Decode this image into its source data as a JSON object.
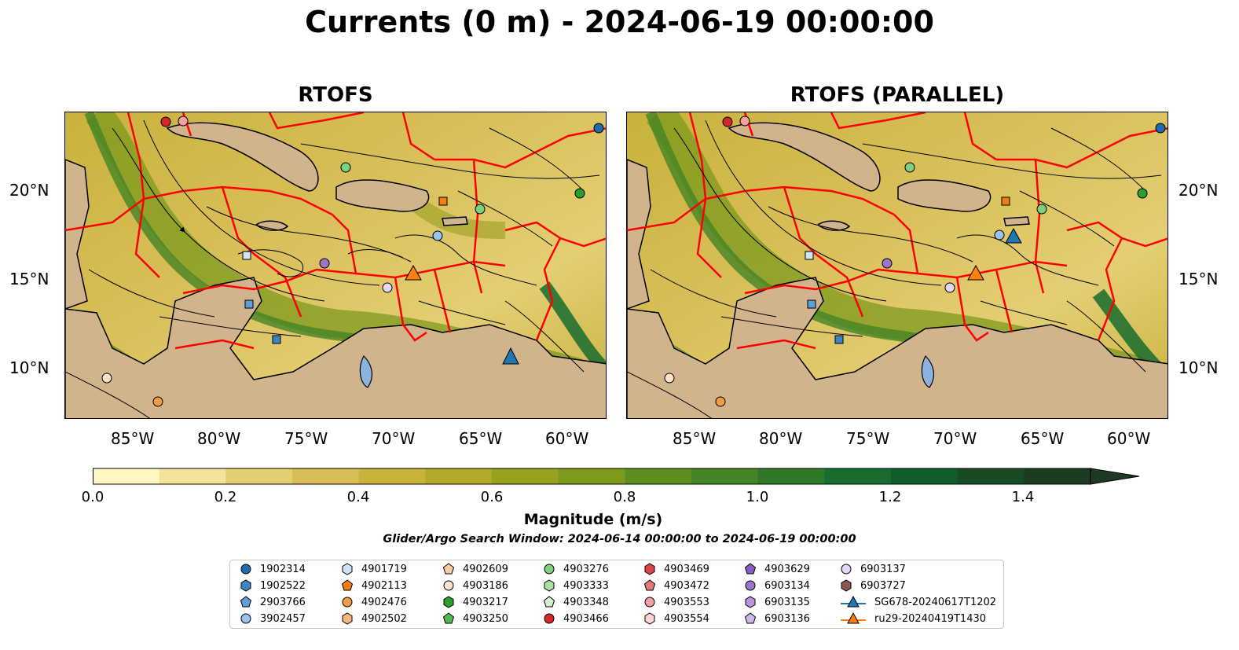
{
  "title": "Currents (0 m) - 2024-06-19 00:00:00",
  "panels": [
    {
      "title": "RTOFS"
    },
    {
      "title": "RTOFS (PARALLEL)"
    }
  ],
  "x_ticks": [
    "85°W",
    "80°W",
    "75°W",
    "70°W",
    "65°W",
    "60°W"
  ],
  "y_ticks": [
    "20°N",
    "15°N",
    "10°N"
  ],
  "colorbar": {
    "label": "Magnitude (m/s)",
    "ticks": [
      "0.0",
      "0.2",
      "0.4",
      "0.6",
      "0.8",
      "1.0",
      "1.2",
      "1.4"
    ],
    "min": 0.0,
    "max": 1.5,
    "extend": "max",
    "colors": [
      "#fff7c2",
      "#f2e29c",
      "#e4ce74",
      "#d8bd56",
      "#c8b23c",
      "#b2a92a",
      "#98a020",
      "#7c9a1c",
      "#5f8e20",
      "#458424",
      "#2e7828",
      "#186c2e",
      "#0f5c2c",
      "#184a26",
      "#1d3b20"
    ]
  },
  "search_window": "Glider/Argo Search Window: 2024-06-14 00:00:00 to 2024-06-19 00:00:00",
  "legend": [
    {
      "label": "1902314",
      "marker": "circle",
      "color": "#1f6bb0"
    },
    {
      "label": "1902522",
      "marker": "hexagon",
      "color": "#3d86c6"
    },
    {
      "label": "2903766",
      "marker": "pentagon",
      "color": "#5d9fd6"
    },
    {
      "label": "3902457",
      "marker": "circle",
      "color": "#97c4ea"
    },
    {
      "label": "4901719",
      "marker": "hexagon",
      "color": "#cde6f7"
    },
    {
      "label": "4902113",
      "marker": "pentagon",
      "color": "#f07f0f"
    },
    {
      "label": "4902476",
      "marker": "circle",
      "color": "#f39a45"
    },
    {
      "label": "4902502",
      "marker": "hexagon",
      "color": "#f7b57a"
    },
    {
      "label": "4902609",
      "marker": "pentagon",
      "color": "#f9cba3"
    },
    {
      "label": "4903186",
      "marker": "circle",
      "color": "#fde3cc"
    },
    {
      "label": "4903217",
      "marker": "hexagon",
      "color": "#2c9e2c"
    },
    {
      "label": "4903250",
      "marker": "pentagon",
      "color": "#4fb84f"
    },
    {
      "label": "4903276",
      "marker": "circle",
      "color": "#7fd07f"
    },
    {
      "label": "4903333",
      "marker": "hexagon",
      "color": "#a8e0a0"
    },
    {
      "label": "4903348",
      "marker": "pentagon",
      "color": "#d4f2cc"
    },
    {
      "label": "4903466",
      "marker": "circle",
      "color": "#d62728"
    },
    {
      "label": "4903469",
      "marker": "hexagon",
      "color": "#dc4545"
    },
    {
      "label": "4903472",
      "marker": "pentagon",
      "color": "#e87878"
    },
    {
      "label": "4903553",
      "marker": "circle",
      "color": "#f2a0a0"
    },
    {
      "label": "4903554",
      "marker": "hexagon",
      "color": "#fcd2d2"
    },
    {
      "label": "4903629",
      "marker": "pentagon",
      "color": "#8a5bc4"
    },
    {
      "label": "6903134",
      "marker": "circle",
      "color": "#9c76cc"
    },
    {
      "label": "6903135",
      "marker": "hexagon",
      "color": "#b596da"
    },
    {
      "label": "6903136",
      "marker": "pentagon",
      "color": "#cdb6e8"
    },
    {
      "label": "6903137",
      "marker": "circle",
      "color": "#e6d6f5"
    },
    {
      "label": "6903727",
      "marker": "hexagon",
      "color": "#8c564b"
    },
    {
      "label": "SG678-20240617T1202",
      "marker": "triangle-line",
      "color": "#1f77b4"
    },
    {
      "label": "ru29-20240419T1430",
      "marker": "triangle-line",
      "color": "#ff7f0e"
    }
  ]
}
